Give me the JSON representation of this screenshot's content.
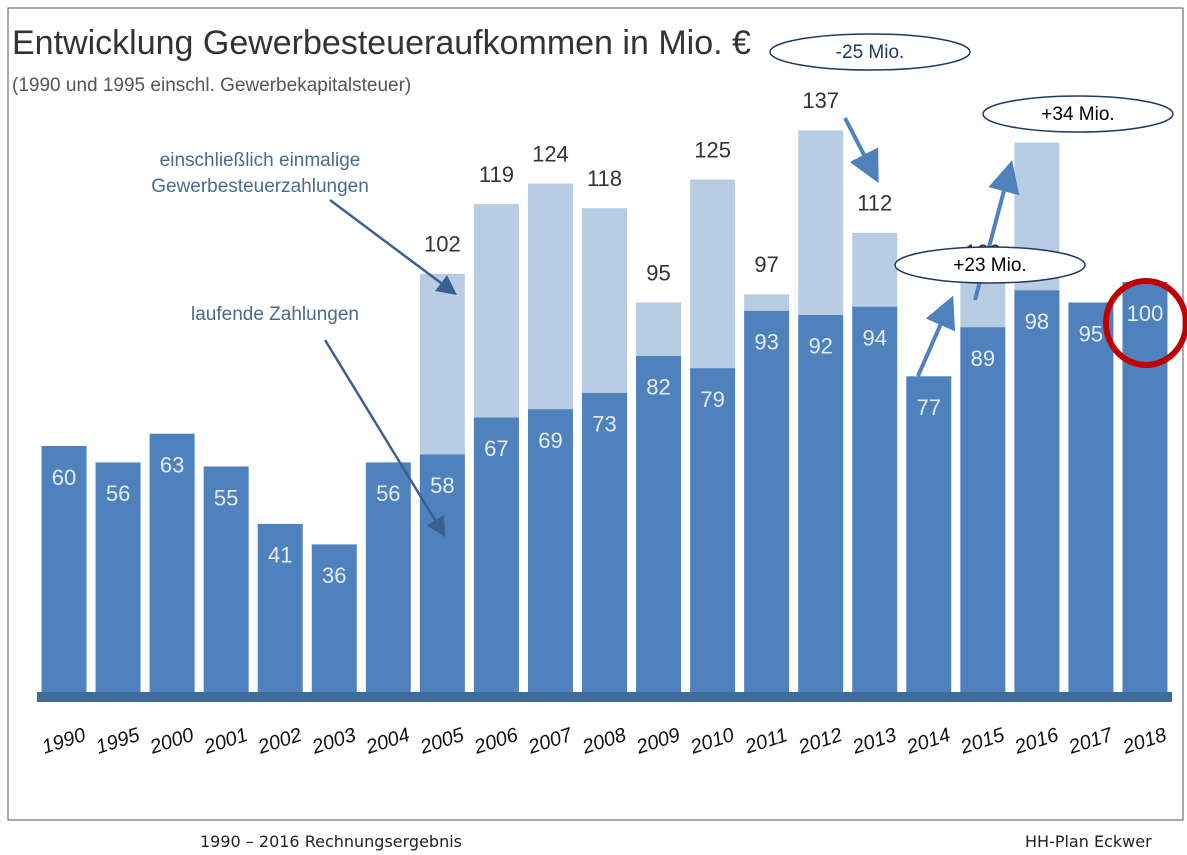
{
  "chart_data": {
    "type": "stacked_bar",
    "title": "Entwicklung Gewerbesteueraufkommen in Mio. €",
    "subtitle": "(1990 und 1995 einschl. Gewerbekapitalsteuer)",
    "categories": [
      "1990",
      "1995",
      "2000",
      "2001",
      "2002",
      "2003",
      "2004",
      "2005",
      "2006",
      "2007",
      "2008",
      "2009",
      "2010",
      "2011",
      "2012",
      "2013",
      "2014",
      "2015",
      "2016",
      "2017",
      "2018"
    ],
    "series": [
      {
        "name": "laufende Zahlungen",
        "color": "#4f81bd",
        "values": [
          60,
          56,
          63,
          55,
          41,
          36,
          56,
          58,
          67,
          69,
          73,
          82,
          79,
          93,
          92,
          94,
          77,
          89,
          98,
          95,
          100
        ]
      },
      {
        "name": "einschließlich einmalige Gewerbesteuerzahlungen",
        "color": "#b8cce4",
        "values": [
          null,
          null,
          null,
          null,
          null,
          null,
          null,
          44,
          52,
          55,
          45,
          13,
          46,
          4,
          45,
          18,
          null,
          11,
          36,
          null,
          null
        ]
      }
    ],
    "total_labels": [
      null,
      null,
      null,
      null,
      null,
      null,
      null,
      "102",
      "119",
      "124",
      "118",
      "95",
      "125",
      "97",
      "137",
      "112",
      null,
      "100",
      "134",
      null,
      null
    ],
    "ylim": [
      0,
      150
    ],
    "annotations": [
      "-25 Mio.",
      "+34 Mio.",
      "+23 Mio."
    ],
    "footer_left": "1990 – 2016 Rechnungsergebnis",
    "footer_right": "HH-Plan   Eckwer"
  }
}
